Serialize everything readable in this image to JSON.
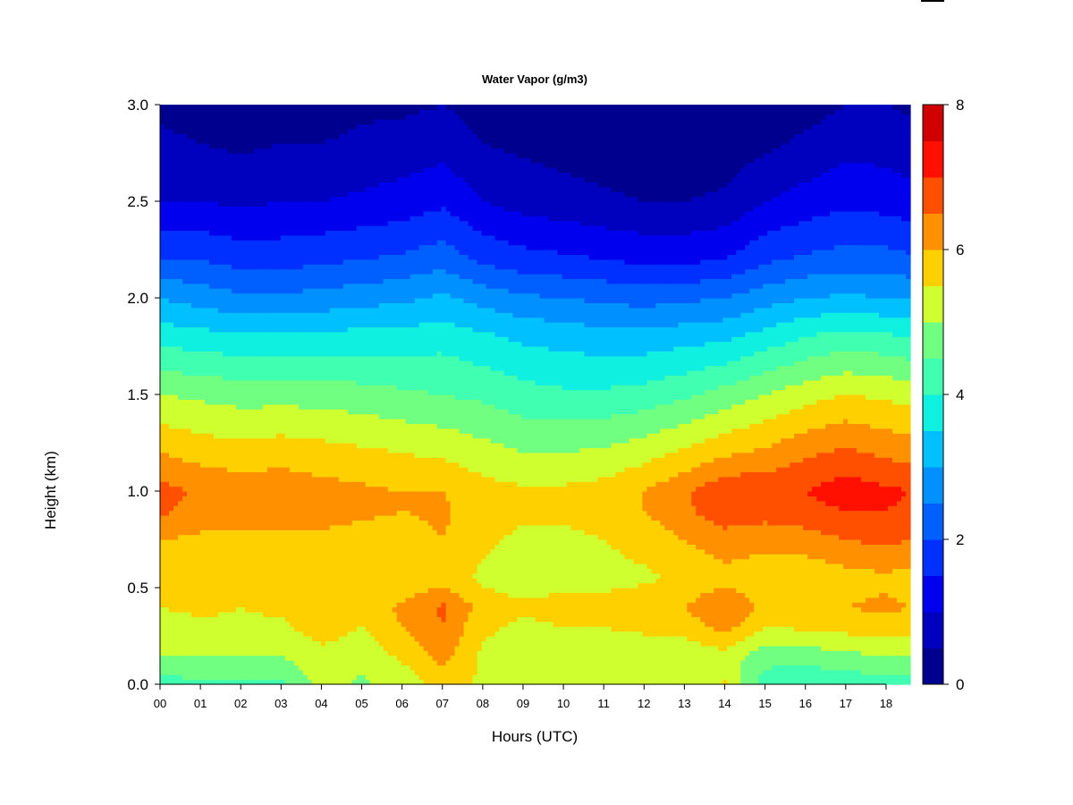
{
  "chart_data": {
    "type": "heatmap",
    "title": "Water Vapor (g/m3)",
    "xlabel": "Hours (UTC)",
    "ylabel": "Height (km)",
    "xlim": [
      0,
      18.6
    ],
    "ylim": [
      0,
      3.0
    ],
    "x_ticks": [
      "00",
      "01",
      "02",
      "03",
      "04",
      "05",
      "06",
      "07",
      "08",
      "09",
      "10",
      "11",
      "12",
      "13",
      "14",
      "15",
      "16",
      "17",
      "18"
    ],
    "y_ticks": [
      "0.0",
      "0.5",
      "1.0",
      "1.5",
      "2.0",
      "2.5",
      "3.0"
    ],
    "colorbar": {
      "range": [
        0,
        8
      ],
      "tick_labels": [
        "0",
        "2",
        "4",
        "6",
        "8"
      ],
      "levels": [
        0,
        0.5,
        1,
        1.5,
        2,
        2.5,
        3,
        3.5,
        4,
        4.5,
        5,
        5.5,
        6,
        6.5,
        7,
        7.5,
        8
      ],
      "colors": [
        "#00008f",
        "#0000bf",
        "#0000ef",
        "#0030ff",
        "#0060ff",
        "#0090ff",
        "#00c0ff",
        "#10f0e0",
        "#40ffb0",
        "#70ff80",
        "#d0ff30",
        "#ffd000",
        "#ff9000",
        "#ff5000",
        "#ff1000",
        "#d00000",
        "#800000"
      ]
    },
    "grid": false,
    "profile_heights_km": [
      0.0,
      0.05,
      0.15,
      0.3,
      0.4,
      0.55,
      0.75,
      0.9,
      1.0,
      1.2,
      1.5,
      1.8,
      2.0,
      2.2,
      2.5,
      2.8,
      3.0
    ],
    "profiles": [
      {
        "hour": 0.0,
        "values": [
          4.2,
          4.5,
          5.0,
          5.3,
          5.5,
          5.5,
          6.0,
          6.6,
          6.7,
          6.0,
          5.0,
          3.8,
          3.0,
          2.0,
          1.0,
          0.6,
          0.4
        ]
      },
      {
        "hour": 1.0,
        "values": [
          4.4,
          4.6,
          5.0,
          5.4,
          5.6,
          5.5,
          5.9,
          6.3,
          6.4,
          5.8,
          4.9,
          3.7,
          2.8,
          2.0,
          1.0,
          0.5,
          0.3
        ]
      },
      {
        "hour": 2.0,
        "values": [
          4.4,
          4.6,
          5.0,
          5.4,
          5.5,
          5.5,
          5.9,
          6.2,
          6.3,
          5.7,
          4.8,
          3.6,
          2.6,
          1.8,
          0.9,
          0.4,
          0.2
        ]
      },
      {
        "hour": 3.0,
        "values": [
          4.3,
          4.6,
          5.0,
          5.4,
          5.6,
          5.5,
          5.9,
          6.2,
          6.3,
          5.8,
          4.8,
          3.6,
          2.6,
          1.8,
          1.0,
          0.5,
          0.3
        ]
      },
      {
        "hour": 4.0,
        "values": [
          5.2,
          5.3,
          5.3,
          5.8,
          6.0,
          5.6,
          5.9,
          6.2,
          6.2,
          5.7,
          4.8,
          3.6,
          2.7,
          1.9,
          1.0,
          0.5,
          0.3
        ]
      },
      {
        "hour": 5.0,
        "values": [
          4.9,
          5.0,
          5.2,
          5.5,
          5.7,
          5.5,
          5.8,
          6.1,
          6.1,
          5.6,
          4.7,
          3.7,
          2.8,
          2.0,
          1.1,
          0.6,
          0.4
        ]
      },
      {
        "hour": 6.0,
        "values": [
          5.2,
          5.3,
          5.6,
          6.0,
          6.1,
          5.5,
          5.8,
          6.0,
          6.0,
          5.5,
          4.6,
          3.7,
          2.9,
          2.1,
          1.2,
          0.7,
          0.4
        ]
      },
      {
        "hour": 7.0,
        "values": [
          5.7,
          5.9,
          6.2,
          6.5,
          6.6,
          5.8,
          6.0,
          6.1,
          6.0,
          5.4,
          4.5,
          3.8,
          3.1,
          2.3,
          1.4,
          0.8,
          0.5
        ]
      },
      {
        "hour": 8.0,
        "values": [
          5.4,
          5.4,
          5.4,
          5.6,
          5.8,
          5.4,
          5.6,
          5.7,
          5.7,
          5.2,
          4.4,
          3.6,
          2.8,
          1.9,
          1.0,
          0.5,
          0.3
        ]
      },
      {
        "hour": 9.0,
        "values": [
          5.2,
          5.2,
          5.2,
          5.4,
          5.6,
          5.2,
          5.4,
          5.6,
          5.6,
          5.0,
          4.2,
          3.4,
          2.6,
          1.7,
          0.8,
          0.4,
          0.2
        ]
      },
      {
        "hour": 10.0,
        "values": [
          5.4,
          5.4,
          5.3,
          5.5,
          5.7,
          5.3,
          5.4,
          5.6,
          5.6,
          5.0,
          4.1,
          3.3,
          2.5,
          1.6,
          0.7,
          0.3,
          0.2
        ]
      },
      {
        "hour": 11.0,
        "values": [
          5.3,
          5.3,
          5.3,
          5.5,
          5.7,
          5.3,
          5.5,
          5.7,
          5.7,
          5.1,
          4.1,
          3.2,
          2.4,
          1.5,
          0.6,
          0.2,
          0.1
        ]
      },
      {
        "hour": 12.0,
        "values": [
          5.2,
          5.2,
          5.2,
          5.6,
          5.9,
          5.4,
          5.7,
          6.0,
          6.0,
          5.3,
          4.2,
          3.2,
          2.3,
          1.4,
          0.5,
          0.1,
          0.0
        ]
      },
      {
        "hour": 13.0,
        "values": [
          5.0,
          5.1,
          5.2,
          5.7,
          6.0,
          5.6,
          6.0,
          6.4,
          6.4,
          5.6,
          4.4,
          3.3,
          2.4,
          1.4,
          0.5,
          0.1,
          0.0
        ]
      },
      {
        "hour": 14.0,
        "values": [
          5.6,
          5.3,
          5.3,
          6.2,
          6.5,
          5.8,
          6.3,
          6.8,
          6.9,
          5.9,
          4.7,
          3.4,
          2.5,
          1.5,
          0.6,
          0.2,
          0.1
        ]
      },
      {
        "hour": 15.0,
        "values": [
          4.3,
          4.4,
          4.7,
          5.5,
          5.9,
          5.6,
          6.2,
          6.7,
          6.9,
          6.1,
          5.0,
          3.7,
          2.8,
          1.9,
          1.0,
          0.4,
          0.2
        ]
      },
      {
        "hour": 16.0,
        "values": [
          4.1,
          4.3,
          4.7,
          5.6,
          5.9,
          5.6,
          6.3,
          6.8,
          7.0,
          6.4,
          5.3,
          4.0,
          3.0,
          2.1,
          1.2,
          0.6,
          0.3
        ]
      },
      {
        "hour": 17.0,
        "values": [
          4.2,
          4.4,
          4.9,
          5.7,
          6.0,
          5.8,
          6.5,
          7.0,
          7.3,
          6.6,
          5.5,
          4.2,
          3.1,
          2.2,
          1.4,
          0.8,
          0.5
        ]
      },
      {
        "hour": 18.0,
        "values": [
          4.3,
          4.5,
          5.0,
          5.8,
          6.1,
          5.9,
          6.6,
          7.0,
          7.1,
          6.4,
          5.4,
          4.1,
          3.0,
          2.2,
          1.3,
          0.8,
          0.5
        ]
      },
      {
        "hour": 18.6,
        "values": [
          4.3,
          4.5,
          5.0,
          5.8,
          6.0,
          5.8,
          6.5,
          6.9,
          7.0,
          6.3,
          5.3,
          4.0,
          3.0,
          2.1,
          1.2,
          0.7,
          0.4
        ]
      }
    ]
  }
}
